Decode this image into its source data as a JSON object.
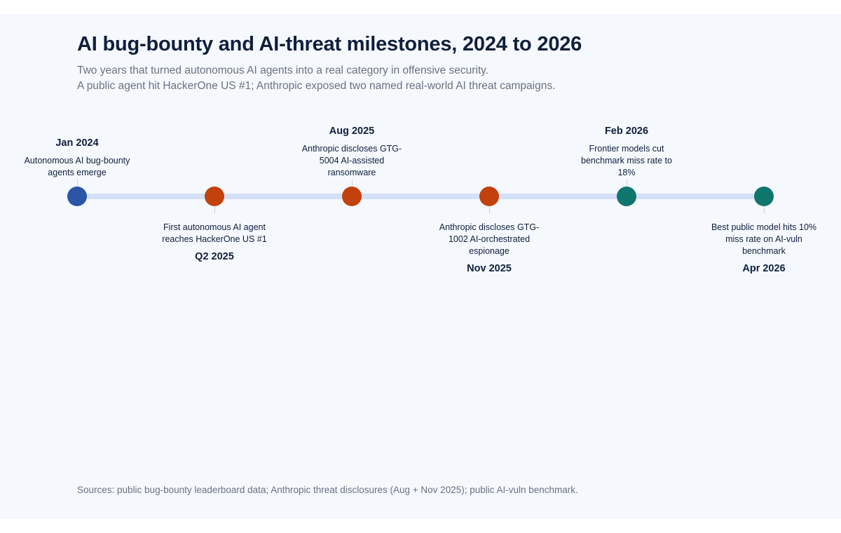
{
  "title": "AI bug-bounty and AI-threat milestones, 2024 to 2026",
  "subtitle_lines": [
    "Two years that turned autonomous AI agents into a real category in offensive security.",
    "A public agent hit HackerOne US #1; Anthropic exposed two named real-world AI threat campaigns."
  ],
  "colors": {
    "track": "#d3e0f8",
    "blue": "#2b55a6",
    "orange": "#c2410c",
    "teal": "#0f766e"
  },
  "milestones": [
    {
      "date": "Jan 2024",
      "text": "Autonomous AI bug-bounty agents emerge",
      "color": "#2b55a6"
    },
    {
      "date": "Q2 2025",
      "text": "First autonomous AI agent reaches HackerOne US #1",
      "color": "#c2410c"
    },
    {
      "date": "Aug 2025",
      "text": "Anthropic discloses GTG-5004 AI-assisted ransomware",
      "color": "#c2410c"
    },
    {
      "date": "Nov 2025",
      "text": "Anthropic discloses GTG-1002 AI-orchestrated espionage",
      "color": "#c2410c"
    },
    {
      "date": "Feb 2026",
      "text": "Frontier models cut benchmark miss rate to 18%",
      "color": "#0f766e"
    },
    {
      "date": "Apr 2026",
      "text": "Best public model hits 10% miss rate on AI-vuln benchmark",
      "color": "#0f766e"
    }
  ],
  "sources": "Sources: public bug-bounty leaderboard data; Anthropic threat disclosures (Aug + Nov 2025); public AI-vuln benchmark."
}
